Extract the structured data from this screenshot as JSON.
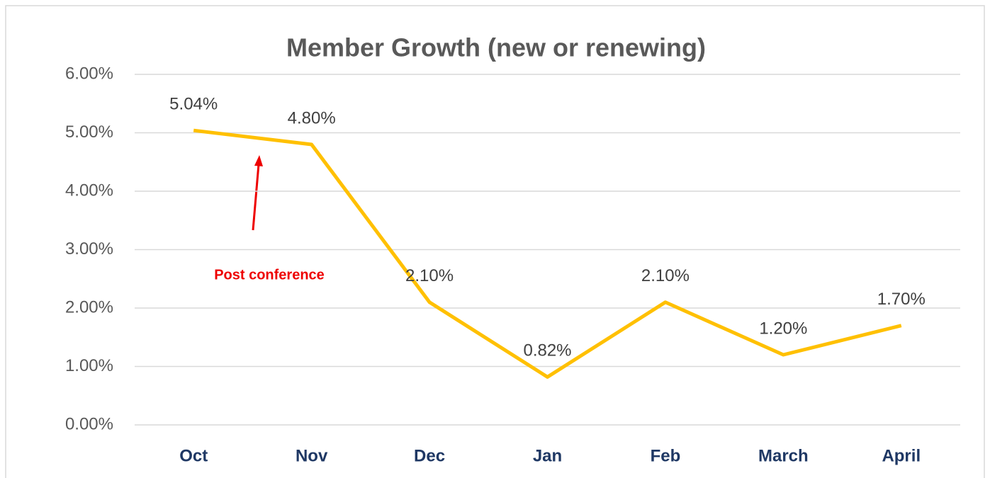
{
  "chart_data": {
    "type": "line",
    "title": "Member Growth (new or renewing)",
    "categories": [
      "Oct",
      "Nov",
      "Dec",
      "Jan",
      "Feb",
      "March",
      "April"
    ],
    "series": [
      {
        "name": "Member Growth",
        "color": "#ffc000",
        "values": [
          5.04,
          4.8,
          2.1,
          0.82,
          2.1,
          1.2,
          1.7
        ],
        "value_labels": [
          "5.04%",
          "4.80%",
          "2.10%",
          "0.82%",
          "2.10%",
          "1.20%",
          "1.70%"
        ]
      }
    ],
    "ylim": [
      0,
      6
    ],
    "yticks": [
      {
        "value": 0,
        "label": "0.00%"
      },
      {
        "value": 1,
        "label": "1.00%"
      },
      {
        "value": 2,
        "label": "2.00%"
      },
      {
        "value": 3,
        "label": "3.00%"
      },
      {
        "value": 4,
        "label": "4.00%"
      },
      {
        "value": 5,
        "label": "5.00%"
      },
      {
        "value": 6,
        "label": "6.00%"
      }
    ],
    "grid": true,
    "annotations": [
      "Post conference"
    ]
  }
}
